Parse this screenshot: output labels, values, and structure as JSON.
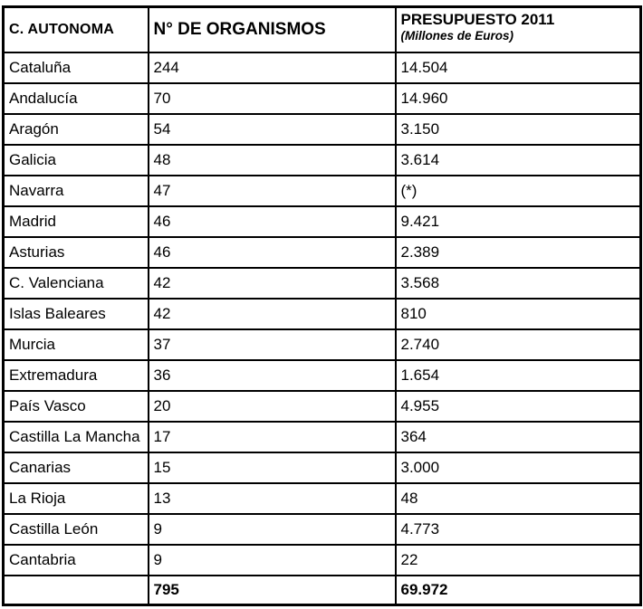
{
  "colors": {
    "border": "#000000",
    "text": "#000000",
    "background": "#ffffff"
  },
  "table": {
    "columns": [
      {
        "label": "C. AUTONOMA"
      },
      {
        "label": "N° DE ORGANISMOS"
      },
      {
        "label": "PRESUPUESTO 2011",
        "sublabel": "(Millones de Euros)"
      }
    ],
    "rows": [
      {
        "region": "Cataluña",
        "organismos": "244",
        "presupuesto": "14.504"
      },
      {
        "region": "Andalucía",
        "organismos": "70",
        "presupuesto": "14.960"
      },
      {
        "region": "Aragón",
        "organismos": "54",
        "presupuesto": "3.150"
      },
      {
        "region": "Galicia",
        "organismos": "48",
        "presupuesto": "3.614"
      },
      {
        "region": "Navarra",
        "organismos": "47",
        "presupuesto": "(*)"
      },
      {
        "region": "Madrid",
        "organismos": "46",
        "presupuesto": "9.421"
      },
      {
        "region": "Asturias",
        "organismos": "46",
        "presupuesto": "2.389"
      },
      {
        "region": "C. Valenciana",
        "organismos": "42",
        "presupuesto": "3.568"
      },
      {
        "region": "Islas Baleares",
        "organismos": "42",
        "presupuesto": "810"
      },
      {
        "region": "Murcia",
        "organismos": "37",
        "presupuesto": "2.740"
      },
      {
        "region": "Extremadura",
        "organismos": "36",
        "presupuesto": "1.654"
      },
      {
        "region": "País Vasco",
        "organismos": "20",
        "presupuesto": "4.955"
      },
      {
        "region": "Castilla La Mancha",
        "organismos": "17",
        "presupuesto": "364"
      },
      {
        "region": "Canarias",
        "organismos": "15",
        "presupuesto": "3.000"
      },
      {
        "region": "La Rioja",
        "organismos": "13",
        "presupuesto": "48"
      },
      {
        "region": "Castilla León",
        "organismos": "9",
        "presupuesto": "4.773"
      },
      {
        "region": "Cantabria",
        "organismos": "9",
        "presupuesto": "22"
      }
    ],
    "totals": {
      "region": "",
      "organismos": "795",
      "presupuesto": "69.972"
    }
  }
}
